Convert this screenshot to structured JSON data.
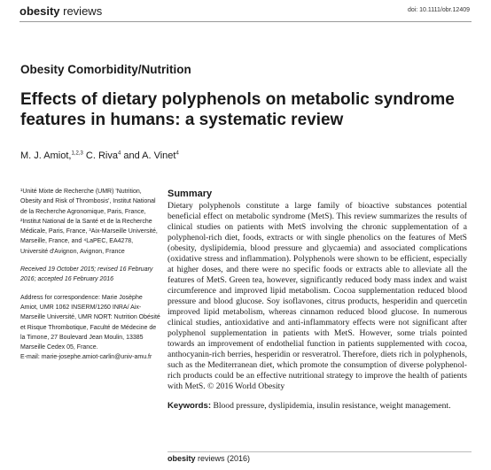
{
  "header": {
    "journal_bold": "obesity",
    "journal_rest": " reviews",
    "doi": "doi: 10.1111/obr.12409"
  },
  "section": "Obesity Comorbidity/Nutrition",
  "title": "Effects of dietary polyphenols on metabolic syndrome features in humans: a systematic review",
  "authors": {
    "a1": "M. J. Amiot,",
    "a1_sup": "1,2,3",
    "a2": " C. Riva",
    "a2_sup": "4",
    "a3": " and A. Vinet",
    "a3_sup": "4"
  },
  "sidebar": {
    "affiliations": "¹Unité Mixte de Recherche (UMR) 'Nutrition, Obesity and Risk of Thrombosis', Institut National de la Recherche Agronomique, Paris, France, ²Institut National de la Santé et de la Recherche Médicale, Paris, France, ³Aix-Marseille Université, Marseille, France, and ⁴LaPEC, EA4278, Université d'Avignon, Avignon, France",
    "dates": "Received 19 October 2015; revised 16 February 2016; accepted 16 February 2016",
    "correspondence": "Address for correspondence: Marie Josèphe Amiot, UMR 1062 INSERM/1260 INRA/ Aix-Marseille Université, UMR NORT: Nutrition Obésité et Risque Thrombotique, Faculté de Médecine de la Timone, 27 Boulevard Jean Moulin, 13385 Marseille Cedex 05, France.",
    "email": "E-mail: marie-josephe.amiot-carlin@univ-amu.fr"
  },
  "summary": {
    "heading": "Summary",
    "text": "Dietary polyphenols constitute a large family of bioactive substances potential beneficial effect on metabolic syndrome (MetS). This review summarizes the results of clinical studies on patients with MetS involving the chronic supplementation of a polyphenol-rich diet, foods, extracts or with single phenolics on the features of MetS (obesity, dyslipidemia, blood pressure and glycaemia) and associated complications (oxidative stress and inflammation). Polyphenols were shown to be efficient, especially at higher doses, and there were no specific foods or extracts able to alleviate all the features of MetS. Green tea, however, significantly reduced body mass index and waist circumference and improved lipid metabolism. Cocoa supplementation reduced blood pressure and blood glucose. Soy isoflavones, citrus products, hesperidin and quercetin improved lipid metabolism, whereas cinnamon reduced blood glucose. In numerous clinical studies, antioxidative and anti-inflammatory effects were not significant after polyphenol supplementation in patients with MetS. However, some trials pointed towards an improvement of endothelial function in patients supplemented with cocoa, anthocyanin-rich berries, hesperidin or resveratrol. Therefore, diets rich in polyphenols, such as the Mediterranean diet, which promote the consumption of diverse polyphenol-rich products could be an effective nutritional strategy to improve the health of patients with MetS. © 2016 World Obesity"
  },
  "keywords": {
    "label": "Keywords:",
    "value": " Blood pressure, dyslipidemia, insulin resistance, weight management."
  },
  "footer": {
    "journal_bold": "obesity",
    "journal_rest": " reviews (2016)"
  }
}
